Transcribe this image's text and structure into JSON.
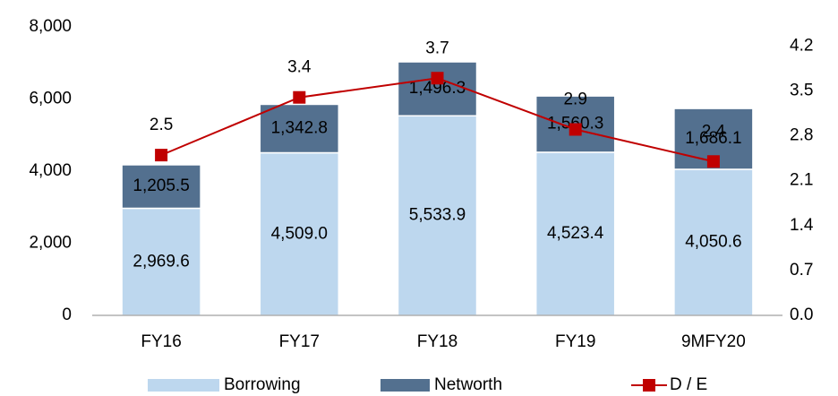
{
  "chart_data": {
    "type": "bar",
    "categories": [
      "FY16",
      "FY17",
      "FY18",
      "FY19",
      "9MFY20"
    ],
    "series": [
      {
        "name": "Borrowing",
        "color": "#bdd7ee",
        "values": [
          2969.6,
          4509.0,
          5533.9,
          4523.4,
          4050.6
        ],
        "value_labels": [
          "2,969.6",
          "4,509.0",
          "5,533.9",
          "4,523.4",
          "4,050.6"
        ]
      },
      {
        "name": "Networth",
        "color": "#53708f",
        "values": [
          1205.5,
          1342.8,
          1496.3,
          1560.3,
          1686.1
        ],
        "value_labels": [
          "1,205.5",
          "1,342.8",
          "1,496.3",
          "1,560.3",
          "1,686.1"
        ]
      },
      {
        "name": "D / E",
        "type": "line",
        "axis": "y2",
        "color": "#c00000",
        "values": [
          2.5,
          3.4,
          3.7,
          2.9,
          2.4
        ]
      }
    ],
    "ylim": [
      0,
      8000
    ],
    "yticks": [
      0,
      {
        "value": 2000,
        "label": "2,000"
      },
      {
        "value": 4000,
        "label": "4,000"
      },
      {
        "value": 6000,
        "label": "6,000"
      },
      {
        "value": 8000,
        "label": "8,000"
      }
    ],
    "y2lim": [
      0,
      4.5
    ],
    "y2ticks": [
      {
        "value": 0,
        "label": "0.0"
      },
      0.7,
      1.4,
      2.1,
      2.8,
      3.5,
      4.2
    ],
    "stacked": true,
    "grid": false,
    "legend": "bottom"
  }
}
